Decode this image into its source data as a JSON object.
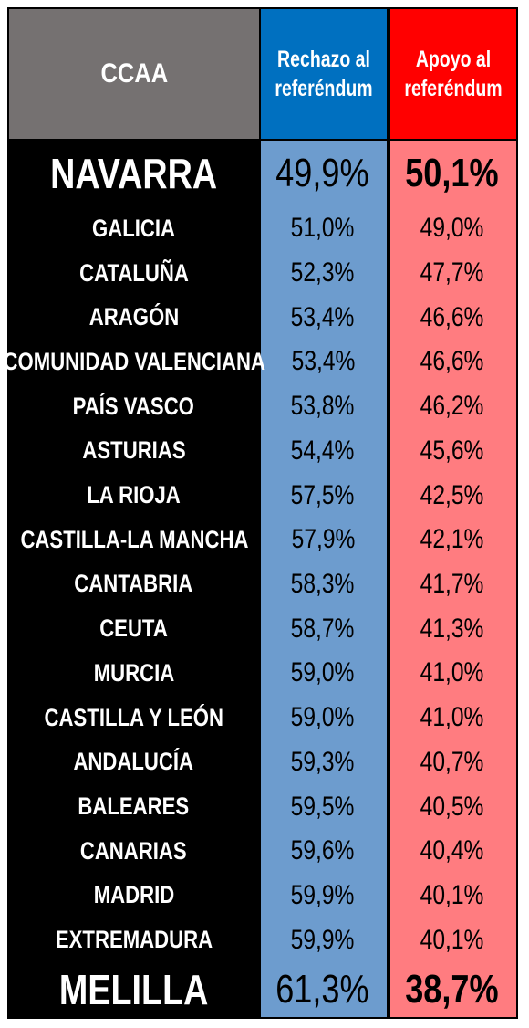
{
  "header": {
    "ccaa": "CCAA",
    "rechazo": "Rechazo al\nreferéndum",
    "apoyo": "Apoyo al\nreferéndum"
  },
  "colors": {
    "header_ccaa": "#757171",
    "header_rechazo": "#0070c0",
    "header_apoyo": "#ff0000",
    "cell_rechazo": "#6d9cce",
    "cell_apoyo": "#ff7c80",
    "name_bg": "#000000"
  },
  "rows": [
    {
      "name": "NAVARRA",
      "rechazo": "49,9%",
      "apoyo": "50,1%"
    },
    {
      "name": "GALICIA",
      "rechazo": "51,0%",
      "apoyo": "49,0%"
    },
    {
      "name": "CATALUÑA",
      "rechazo": "52,3%",
      "apoyo": "47,7%"
    },
    {
      "name": "ARAGÓN",
      "rechazo": "53,4%",
      "apoyo": "46,6%"
    },
    {
      "name": "COMUNIDAD VALENCIANA",
      "rechazo": "53,4%",
      "apoyo": "46,6%"
    },
    {
      "name": "PAÍS VASCO",
      "rechazo": "53,8%",
      "apoyo": "46,2%"
    },
    {
      "name": "ASTURIAS",
      "rechazo": "54,4%",
      "apoyo": "45,6%"
    },
    {
      "name": "LA RIOJA",
      "rechazo": "57,5%",
      "apoyo": "42,5%"
    },
    {
      "name": "CASTILLA-LA MANCHA",
      "rechazo": "57,9%",
      "apoyo": "42,1%"
    },
    {
      "name": "CANTABRIA",
      "rechazo": "58,3%",
      "apoyo": "41,7%"
    },
    {
      "name": "CEUTA",
      "rechazo": "58,7%",
      "apoyo": "41,3%"
    },
    {
      "name": "MURCIA",
      "rechazo": "59,0%",
      "apoyo": "41,0%"
    },
    {
      "name": "CASTILLA Y LEÓN",
      "rechazo": "59,0%",
      "apoyo": "41,0%"
    },
    {
      "name": "ANDALUCÍA",
      "rechazo": "59,3%",
      "apoyo": "40,7%"
    },
    {
      "name": "BALEARES",
      "rechazo": "59,5%",
      "apoyo": "40,5%"
    },
    {
      "name": "CANARIAS",
      "rechazo": "59,6%",
      "apoyo": "40,4%"
    },
    {
      "name": "MADRID",
      "rechazo": "59,9%",
      "apoyo": "40,1%"
    },
    {
      "name": "EXTREMADURA",
      "rechazo": "59,9%",
      "apoyo": "40,1%"
    },
    {
      "name": "MELILLA",
      "rechazo": "61,3%",
      "apoyo": "38,7%"
    }
  ]
}
